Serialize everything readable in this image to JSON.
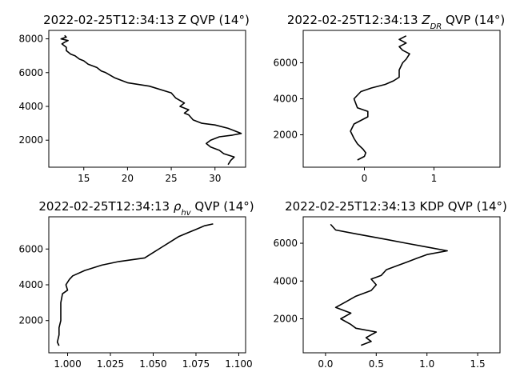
{
  "chart_data": [
    {
      "type": "line",
      "title_pre": "2022-02-25T12:34:13 Z QVP (14°)",
      "title_sym": "",
      "title_sub": "",
      "title_post": "",
      "xlim": [
        11.0,
        33.5
      ],
      "ylim": [
        400,
        8500
      ],
      "xticks": [
        15,
        20,
        25,
        30
      ],
      "xtick_labels": [
        "15",
        "20",
        "25",
        "30"
      ],
      "yticks": [
        2000,
        4000,
        6000,
        8000
      ],
      "ytick_labels": [
        "2000",
        "4000",
        "6000",
        "8000"
      ],
      "grid": false,
      "series": [
        {
          "x": [
            31.5,
            31.8,
            32.2,
            31.0,
            30.5,
            29.5,
            29.0,
            29.5,
            30.5,
            32.0,
            33.0,
            31.5,
            30.0,
            28.5,
            27.5,
            27.0,
            26.5,
            27.0,
            26.0,
            26.5,
            25.5,
            25.0,
            22.5,
            20.0,
            18.5,
            17.5,
            17.0,
            16.5,
            15.5,
            15.0,
            14.5,
            14.0,
            13.5,
            13.0,
            13.0,
            12.5,
            12.8,
            13.2,
            12.4,
            13.0,
            12.8
          ],
          "y": [
            550,
            800,
            1000,
            1200,
            1400,
            1600,
            1800,
            2000,
            2200,
            2300,
            2400,
            2700,
            2900,
            3000,
            3200,
            3500,
            3600,
            3800,
            4000,
            4200,
            4500,
            4800,
            5200,
            5400,
            5700,
            6000,
            6100,
            6300,
            6500,
            6700,
            6800,
            7000,
            7100,
            7300,
            7500,
            7700,
            7800,
            7900,
            8000,
            8100,
            8200
          ]
        }
      ]
    },
    {
      "type": "line",
      "title_pre": "2022-02-25T12:34:13 ",
      "title_sym": "Z",
      "title_sub": "DR",
      "title_post": " QVP (14°)",
      "xlim": [
        -0.88,
        1.95
      ],
      "ylim": [
        200,
        7800
      ],
      "xticks": [
        0,
        1
      ],
      "xtick_labels": [
        "0",
        "1"
      ],
      "yticks": [
        2000,
        4000,
        6000
      ],
      "ytick_labels": [
        "2000",
        "4000",
        "6000"
      ],
      "grid": false,
      "series": [
        {
          "x": [
            -0.1,
            0,
            0.02,
            -0.02,
            -0.1,
            -0.15,
            -0.2,
            -0.15,
            0.05,
            0.05,
            -0.1,
            -0.15,
            -0.1,
            -0.05,
            0.1,
            0.3,
            0.42,
            0.5,
            0.5,
            0.55,
            0.6,
            0.65,
            0.55,
            0.5,
            0.6,
            0.5,
            0.6
          ],
          "y": [
            600,
            800,
            1000,
            1200,
            1500,
            1800,
            2200,
            2600,
            3000,
            3300,
            3500,
            4000,
            4200,
            4400,
            4600,
            4800,
            5000,
            5200,
            5600,
            6000,
            6200,
            6500,
            6700,
            6900,
            7100,
            7300,
            7500
          ]
        }
      ]
    },
    {
      "type": "line",
      "title_pre": "2022-02-25T12:34:13 ",
      "title_sym": "ρ",
      "title_sub": "hv",
      "title_post": " QVP (14°)",
      "xlim": [
        0.989,
        1.104
      ],
      "ylim": [
        200,
        7800
      ],
      "xticks": [
        1.0,
        1.025,
        1.05,
        1.075,
        1.1
      ],
      "xtick_labels": [
        "1.000",
        "1.025",
        "1.050",
        "1.075",
        "1.100"
      ],
      "yticks": [
        2000,
        4000,
        6000
      ],
      "ytick_labels": [
        "2000",
        "4000",
        "6000"
      ],
      "grid": false,
      "series": [
        {
          "x": [
            0.995,
            0.994,
            0.995,
            0.995,
            0.996,
            0.996,
            0.996,
            0.997,
            1.0,
            0.999,
            1.001,
            1.003,
            1.01,
            1.02,
            1.03,
            1.045,
            1.05,
            1.055,
            1.06,
            1.065,
            1.07,
            1.075,
            1.08,
            1.085
          ],
          "y": [
            600,
            800,
            1200,
            1600,
            2000,
            2500,
            3000,
            3500,
            3700,
            4000,
            4300,
            4500,
            4800,
            5100,
            5300,
            5500,
            5800,
            6100,
            6400,
            6700,
            6900,
            7100,
            7300,
            7400
          ]
        }
      ]
    },
    {
      "type": "line",
      "title_pre": "2022-02-25T12:34:13 KDP QVP (14°)",
      "title_sym": "",
      "title_sub": "",
      "title_post": "",
      "xlim": [
        -0.22,
        1.72
      ],
      "ylim": [
        200,
        7400
      ],
      "xticks": [
        0.0,
        0.5,
        1.0,
        1.5
      ],
      "xtick_labels": [
        "0.0",
        "0.5",
        "1.0",
        "1.5"
      ],
      "yticks": [
        2000,
        4000,
        6000
      ],
      "ytick_labels": [
        "2000",
        "4000",
        "6000"
      ],
      "grid": false,
      "series": [
        {
          "x": [
            0.35,
            0.45,
            0.4,
            0.5,
            0.3,
            0.25,
            0.15,
            0.25,
            0.1,
            0.2,
            0.3,
            0.45,
            0.5,
            0.45,
            0.55,
            0.6,
            0.7,
            0.8,
            0.9,
            1.0,
            1.2,
            1.0,
            0.8,
            0.6,
            0.3,
            0.1,
            0.05
          ],
          "y": [
            600,
            800,
            1000,
            1300,
            1500,
            1700,
            2000,
            2300,
            2600,
            2900,
            3200,
            3500,
            3800,
            4100,
            4300,
            4600,
            4800,
            5000,
            5200,
            5400,
            5600,
            5800,
            6000,
            6200,
            6500,
            6700,
            7000
          ]
        }
      ]
    }
  ]
}
